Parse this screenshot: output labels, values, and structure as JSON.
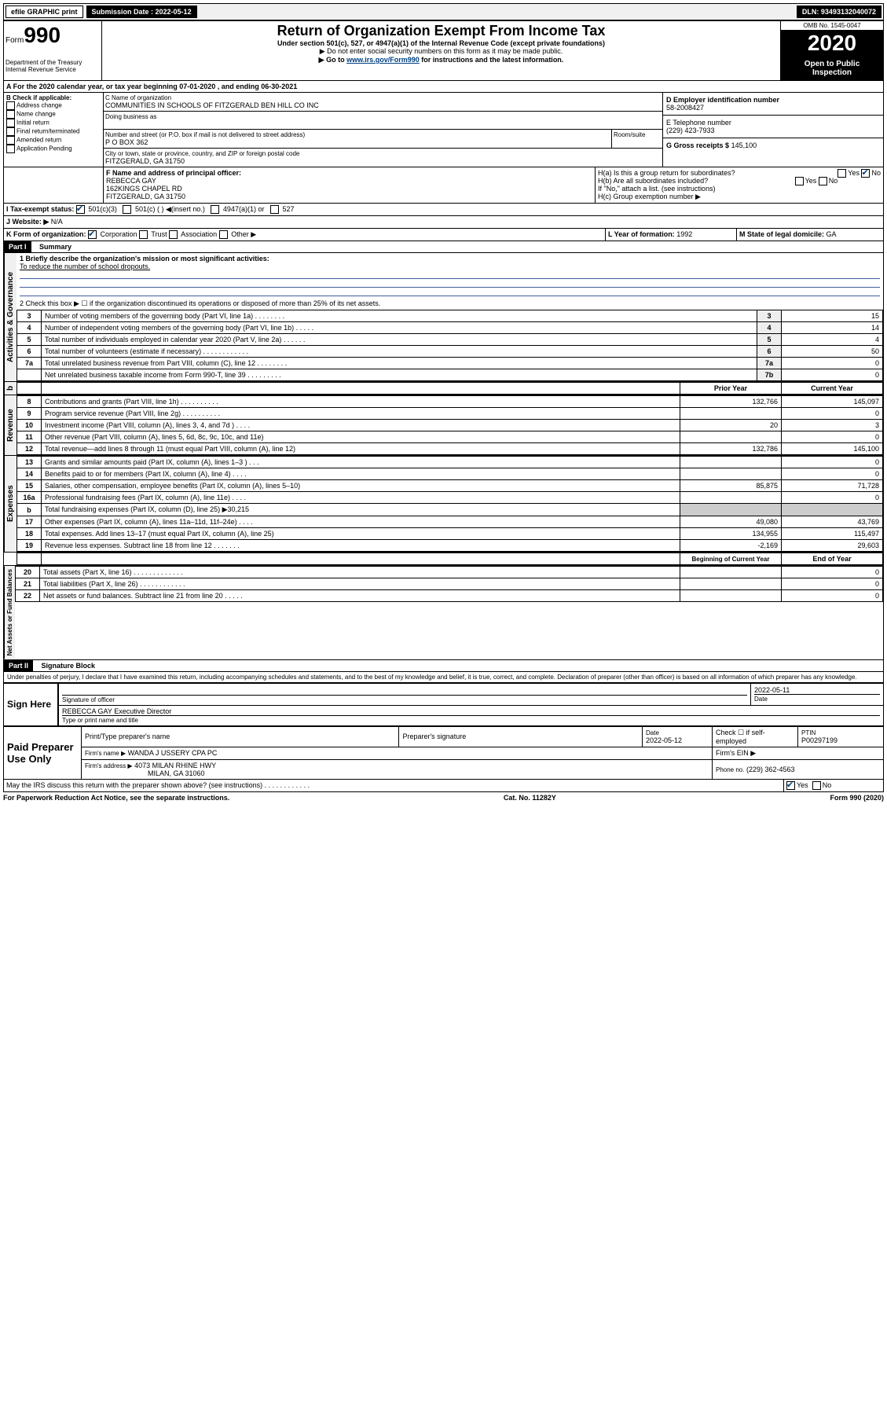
{
  "top": {
    "efile": "efile GRAPHIC print",
    "sub_label": "Submission Date : ",
    "sub_date": "2022-05-12",
    "dln": "DLN: 93493132040072"
  },
  "header": {
    "form_word": "Form",
    "form_num": "990",
    "title": "Return of Organization Exempt From Income Tax",
    "subtitle": "Under section 501(c), 527, or 4947(a)(1) of the Internal Revenue Code (except private foundations)",
    "note1": "▶ Do not enter social security numbers on this form as it may be made public.",
    "note2_pre": "▶ Go to ",
    "note2_link": "www.irs.gov/Form990",
    "note2_post": " for instructions and the latest information.",
    "omb": "OMB No. 1545-0047",
    "year": "2020",
    "open": "Open to Public Inspection",
    "dept": "Department of the Treasury\nInternal Revenue Service"
  },
  "periodA": "A For the 2020 calendar year, or tax year beginning 07-01-2020   , and ending 06-30-2021",
  "B": {
    "label": "B Check if applicable:",
    "opts": [
      "Address change",
      "Name change",
      "Initial return",
      "Final return/terminated",
      "Amended return",
      "Application Pending"
    ]
  },
  "C": {
    "name_label": "C Name of organization",
    "name": "COMMUNITIES IN SCHOOLS OF FITZGERALD BEN HILL CO INC",
    "dba_label": "Doing business as",
    "addr_label": "Number and street (or P.O. box if mail is not delivered to street address)",
    "room_label": "Room/suite",
    "addr": "P O BOX 362",
    "city_label": "City or town, state or province, country, and ZIP or foreign postal code",
    "city": "FITZGERALD, GA  31750"
  },
  "D": {
    "label": "D Employer identification number",
    "value": "58-2008427"
  },
  "E": {
    "label": "E Telephone number",
    "value": "(229) 423-7933"
  },
  "G": {
    "label": "G Gross receipts $",
    "value": "145,100"
  },
  "F": {
    "label": "F Name and address of principal officer:",
    "name": "REBECCA GAY",
    "addr1": "162KINGS CHAPEL RD",
    "addr2": "FITZGERALD, GA  31750"
  },
  "H": {
    "a": "H(a)  Is this a group return for subordinates?",
    "b": "H(b)  Are all subordinates included?",
    "note": "If \"No,\" attach a list. (see instructions)",
    "c": "H(c)  Group exemption number ▶"
  },
  "I": {
    "label": "I   Tax-exempt status:",
    "opts": [
      "501(c)(3)",
      "501(c) (  ) ◀(insert no.)",
      "4947(a)(1) or",
      "527"
    ]
  },
  "J": {
    "label": "J   Website: ▶",
    "value": "N/A"
  },
  "K": {
    "label": "K Form of organization:",
    "opts": [
      "Corporation",
      "Trust",
      "Association",
      "Other ▶"
    ]
  },
  "L": {
    "label": "L Year of formation:",
    "value": "1992"
  },
  "M": {
    "label": "M State of legal domicile:",
    "value": "GA"
  },
  "part1": {
    "title": "Part I",
    "subtitle": "Summary",
    "line1_label": "1  Briefly describe the organization's mission or most significant activities:",
    "line1_text": "To reduce the number of school dropouts.",
    "line2": "2   Check this box ▶ ☐  if the organization discontinued its operations or disposed of more than 25% of its net assets.",
    "cols": {
      "prior": "Prior Year",
      "current": "Current Year",
      "boy": "Beginning of Current Year",
      "eoy": "End of Year"
    },
    "rows": [
      {
        "n": "3",
        "t": "Number of voting members of the governing body (Part VI, line 1a)   .    .    .    .    .    .    .    .",
        "b": "3",
        "v": "15"
      },
      {
        "n": "4",
        "t": "Number of independent voting members of the governing body (Part VI, line 1b)   .    .    .    .    .",
        "b": "4",
        "v": "14"
      },
      {
        "n": "5",
        "t": "Total number of individuals employed in calendar year 2020 (Part V, line 2a)   .    .    .    .    .    .",
        "b": "5",
        "v": "4"
      },
      {
        "n": "6",
        "t": "Total number of volunteers (estimate if necessary)   .    .    .    .    .    .    .    .    .    .    .    .",
        "b": "6",
        "v": "50"
      },
      {
        "n": "7a",
        "t": "Total unrelated business revenue from Part VIII, column (C), line 12   .    .    .    .    .    .    .    .",
        "b": "7a",
        "v": "0"
      },
      {
        "n": "",
        "t": "Net unrelated business taxable income from Form 990-T, line 39   .    .    .    .    .    .    .    .    .",
        "b": "7b",
        "v": "0"
      }
    ],
    "rev": [
      {
        "n": "8",
        "t": "Contributions and grants (Part VIII, line 1h)   .    .    .    .    .    .    .    .    .    .",
        "p": "132,766",
        "c": "145,097"
      },
      {
        "n": "9",
        "t": "Program service revenue (Part VIII, line 2g)   .    .    .    .    .    .    .    .    .    .",
        "p": "",
        "c": "0"
      },
      {
        "n": "10",
        "t": "Investment income (Part VIII, column (A), lines 3, 4, and 7d )   .    .    .    .",
        "p": "20",
        "c": "3"
      },
      {
        "n": "11",
        "t": "Other revenue (Part VIII, column (A), lines 5, 6d, 8c, 9c, 10c, and 11e)",
        "p": "",
        "c": "0"
      },
      {
        "n": "12",
        "t": "Total revenue—add lines 8 through 11 (must equal Part VIII, column (A), line 12)",
        "p": "132,786",
        "c": "145,100"
      }
    ],
    "exp": [
      {
        "n": "13",
        "t": "Grants and similar amounts paid (Part IX, column (A), lines 1–3 )   .    .    .",
        "p": "",
        "c": "0"
      },
      {
        "n": "14",
        "t": "Benefits paid to or for members (Part IX, column (A), line 4)   .    .    .    .",
        "p": "",
        "c": "0"
      },
      {
        "n": "15",
        "t": "Salaries, other compensation, employee benefits (Part IX, column (A), lines 5–10)",
        "p": "85,875",
        "c": "71,728"
      },
      {
        "n": "16a",
        "t": "Professional fundraising fees (Part IX, column (A), line 11e)   .    .    .    .",
        "p": "",
        "c": "0"
      },
      {
        "n": "b",
        "t": "Total fundraising expenses (Part IX, column (D), line 25) ▶30,215",
        "p": "GREY",
        "c": "GREY"
      },
      {
        "n": "17",
        "t": "Other expenses (Part IX, column (A), lines 11a–11d, 11f–24e)   .    .    .    .",
        "p": "49,080",
        "c": "43,769"
      },
      {
        "n": "18",
        "t": "Total expenses. Add lines 13–17 (must equal Part IX, column (A), line 25)",
        "p": "134,955",
        "c": "115,497"
      },
      {
        "n": "19",
        "t": "Revenue less expenses. Subtract line 18 from line 12   .    .    .    .    .    .    .",
        "p": "-2,169",
        "c": "29,603"
      }
    ],
    "net": [
      {
        "n": "20",
        "t": "Total assets (Part X, line 16)   .    .    .    .    .    .    .    .    .    .    .    .    .",
        "p": "",
        "c": "0"
      },
      {
        "n": "21",
        "t": "Total liabilities (Part X, line 26)   .    .    .    .    .    .    .    .    .    .    .    .",
        "p": "",
        "c": "0"
      },
      {
        "n": "22",
        "t": "Net assets or fund balances. Subtract line 21 from line 20   .    .    .    .    .",
        "p": "",
        "c": "0"
      }
    ],
    "sidelabels": {
      "gov": "Activities & Governance",
      "rev": "Revenue",
      "exp": "Expenses",
      "net": "Net Assets or\nFund Balances"
    }
  },
  "part2": {
    "title": "Part II",
    "subtitle": "Signature Block",
    "perjury": "Under penalties of perjury, I declare that I have examined this return, including accompanying schedules and statements, and to the best of my knowledge and belief, it is true, correct, and complete. Declaration of preparer (other than officer) is based on all information of which preparer has any knowledge.",
    "sign_here": "Sign Here",
    "sig_officer": "Signature of officer",
    "sig_date": "2022-05-11",
    "sig_date_label": "Date",
    "officer_name": "REBECCA GAY  Executive Director",
    "type_name": "Type or print name and title",
    "paid": "Paid Preparer Use Only",
    "prep_name_label": "Print/Type preparer's name",
    "prep_sig_label": "Preparer's signature",
    "prep_date_label": "Date",
    "prep_date": "2022-05-12",
    "self_emp": "Check ☐  if self-employed",
    "ptin_label": "PTIN",
    "ptin": "P00297199",
    "firm_name_label": "Firm's name    ▶",
    "firm_name": "WANDA J USSERY CPA PC",
    "firm_ein_label": "Firm's EIN ▶",
    "firm_addr_label": "Firm's address ▶",
    "firm_addr": "4073 MILAN RHINE HWY",
    "firm_city": "MILAN, GA  31060",
    "phone_label": "Phone no.",
    "phone": "(229) 362-4563",
    "discuss": "May the IRS discuss this return with the preparer shown above? (see instructions)   .    .    .    .    .    .    .    .    .    .    .    ."
  },
  "footer": {
    "pra": "For Paperwork Reduction Act Notice, see the separate instructions.",
    "cat": "Cat. No. 11282Y",
    "form": "Form 990 (2020)"
  },
  "yesno": {
    "yes": "Yes",
    "no": "No"
  }
}
